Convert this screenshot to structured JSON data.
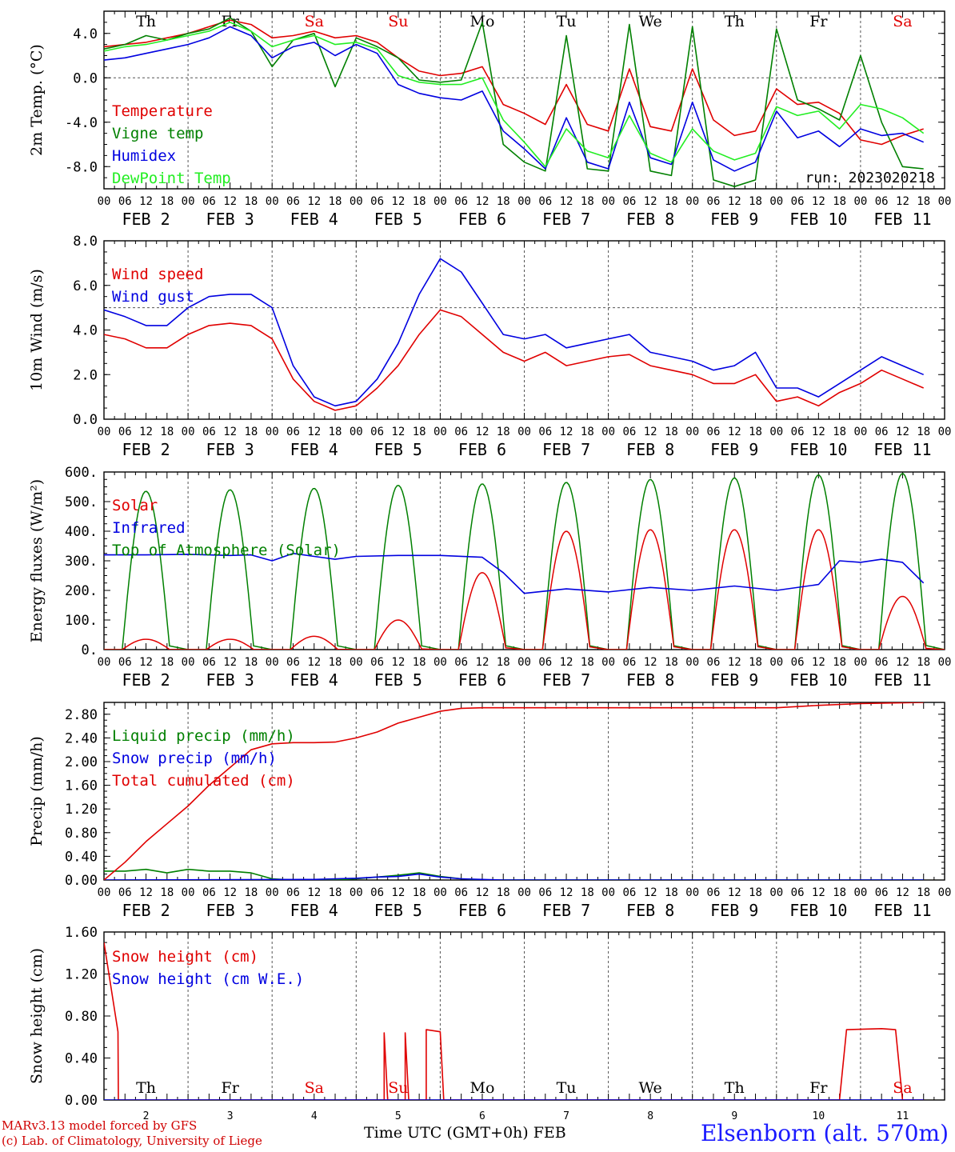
{
  "meta": {
    "credit_line1": "MARv3.13 model forced by GFS",
    "credit_line2": "(c) Lab. of Climatology, University of Liege",
    "xlabel": "Time UTC (GMT+0h) FEB",
    "station": "Elsenborn (alt. 570m)",
    "run": "run: 2023020218"
  },
  "time_axis": {
    "hour_ticks": [
      "00",
      "06",
      "12",
      "18"
    ],
    "date_labels": [
      "FEB  2",
      "FEB  3",
      "FEB  4",
      "FEB  5",
      "FEB  6",
      "FEB  7",
      "FEB  8",
      "FEB  9",
      "FEB 10",
      "FEB 11"
    ],
    "day_numbers": [
      "2",
      "3",
      "4",
      "5",
      "6",
      "7",
      "8",
      "9",
      "10",
      "11"
    ],
    "weekdays": [
      "Th",
      "Fr",
      "Sa",
      "Su",
      "Mo",
      "Tu",
      "We",
      "Th",
      "Fr",
      "Sa"
    ],
    "weekend_index": [
      2,
      3,
      9
    ],
    "colors": {
      "weekday": "#000000",
      "weekend": "#e00000"
    }
  },
  "chart_data": [
    {
      "type": "line",
      "ylabel": "2m Temp. (°C)",
      "ylim": [
        -10,
        6
      ],
      "yticks": [
        "4.0",
        "0.0",
        "-4.0",
        "-8.0"
      ],
      "ref_line": 0,
      "show_weekdays": "top",
      "show_run": true,
      "legend": [
        "Temperature",
        "Vigne temp",
        "Humidex",
        "DewPoint Temp"
      ],
      "series": [
        {
          "name": "Temperature",
          "color": "#e00000",
          "x": [
            0,
            6,
            12,
            18,
            24,
            30,
            36,
            42,
            48,
            54,
            60,
            66,
            72,
            78,
            84,
            90,
            96,
            102,
            108,
            114,
            120,
            126,
            132,
            138,
            144,
            150,
            156,
            162,
            168,
            174,
            180,
            186,
            192,
            198,
            204,
            210,
            216,
            222,
            228,
            234
          ],
          "y": [
            2.8,
            3.0,
            3.2,
            3.6,
            4.0,
            4.6,
            5.2,
            4.8,
            3.6,
            3.8,
            4.2,
            3.6,
            3.8,
            3.2,
            1.8,
            0.6,
            0.2,
            0.4,
            1.0,
            -2.4,
            -3.2,
            -4.2,
            -0.6,
            -4.2,
            -4.8,
            0.8,
            -4.4,
            -4.8,
            0.8,
            -3.8,
            -5.2,
            -4.8,
            -1.0,
            -2.4,
            -2.2,
            -3.2,
            -5.6,
            -6.0,
            -5.2,
            -4.6
          ]
        },
        {
          "name": "Vigne temp",
          "color": "#008000",
          "x": [
            0,
            6,
            12,
            18,
            24,
            30,
            36,
            42,
            48,
            54,
            60,
            66,
            72,
            78,
            84,
            90,
            96,
            102,
            108,
            114,
            120,
            126,
            132,
            138,
            144,
            150,
            156,
            162,
            168,
            174,
            180,
            186,
            192,
            198,
            204,
            210,
            216,
            222,
            228,
            234
          ],
          "y": [
            2.6,
            3.0,
            3.8,
            3.4,
            4.0,
            4.4,
            5.4,
            4.2,
            1.0,
            3.4,
            4.0,
            -0.8,
            3.6,
            2.8,
            1.8,
            -0.2,
            -0.4,
            -0.2,
            5.0,
            -6.0,
            -7.6,
            -8.4,
            3.8,
            -8.2,
            -8.4,
            4.8,
            -8.4,
            -8.8,
            4.6,
            -9.2,
            -9.8,
            -9.2,
            4.4,
            -2.0,
            -2.8,
            -3.8,
            2.0,
            -4.0,
            -8.0,
            -8.2
          ]
        },
        {
          "name": "Humidex",
          "color": "#0000e0",
          "x": [
            0,
            6,
            12,
            18,
            24,
            30,
            36,
            42,
            48,
            54,
            60,
            66,
            72,
            78,
            84,
            90,
            96,
            102,
            108,
            114,
            120,
            126,
            132,
            138,
            144,
            150,
            156,
            162,
            168,
            174,
            180,
            186,
            192,
            198,
            204,
            210,
            216,
            222,
            228,
            234
          ],
          "y": [
            1.6,
            1.8,
            2.2,
            2.6,
            3.0,
            3.6,
            4.6,
            3.8,
            1.8,
            2.8,
            3.2,
            2.0,
            3.0,
            2.2,
            -0.6,
            -1.4,
            -1.8,
            -2.0,
            -1.2,
            -4.8,
            -6.4,
            -8.2,
            -3.6,
            -7.6,
            -8.2,
            -2.2,
            -7.2,
            -7.8,
            -2.2,
            -7.4,
            -8.4,
            -7.6,
            -3.0,
            -5.4,
            -4.8,
            -6.2,
            -4.6,
            -5.2,
            -5.0,
            -5.8
          ]
        },
        {
          "name": "DewPoint Temp",
          "color": "#22ee22",
          "x": [
            0,
            6,
            12,
            18,
            24,
            30,
            36,
            42,
            48,
            54,
            60,
            66,
            72,
            78,
            84,
            90,
            96,
            102,
            108,
            114,
            120,
            126,
            132,
            138,
            144,
            150,
            156,
            162,
            168,
            174,
            180,
            186,
            192,
            198,
            204,
            210,
            216,
            222,
            228,
            234
          ],
          "y": [
            2.4,
            2.8,
            3.0,
            3.4,
            3.8,
            4.2,
            5.0,
            4.2,
            2.8,
            3.4,
            3.8,
            3.0,
            3.2,
            2.6,
            0.2,
            -0.4,
            -0.6,
            -0.6,
            0.0,
            -3.8,
            -5.8,
            -8.0,
            -4.6,
            -6.6,
            -7.2,
            -3.4,
            -6.8,
            -7.6,
            -4.6,
            -6.6,
            -7.4,
            -6.8,
            -2.6,
            -3.4,
            -3.0,
            -4.6,
            -2.4,
            -2.8,
            -3.6,
            -5.0
          ]
        }
      ]
    },
    {
      "type": "line",
      "ylabel": "10m Wind (m/s)",
      "ylim": [
        0,
        8
      ],
      "yticks": [
        "8.0",
        "6.0",
        "4.0",
        "2.0",
        "0.0"
      ],
      "ref_line": 5,
      "legend": [
        "Wind speed",
        "Wind gust"
      ],
      "series": [
        {
          "name": "Wind speed",
          "color": "#e00000",
          "x": [
            0,
            6,
            12,
            18,
            24,
            30,
            36,
            42,
            48,
            54,
            60,
            66,
            72,
            78,
            84,
            90,
            96,
            102,
            108,
            114,
            120,
            126,
            132,
            138,
            144,
            150,
            156,
            162,
            168,
            174,
            180,
            186,
            192,
            198,
            204,
            210,
            216,
            222,
            228,
            234
          ],
          "y": [
            3.8,
            3.6,
            3.2,
            3.2,
            3.8,
            4.2,
            4.3,
            4.2,
            3.6,
            1.8,
            0.8,
            0.4,
            0.6,
            1.4,
            2.4,
            3.8,
            4.9,
            4.6,
            3.8,
            3.0,
            2.6,
            3.0,
            2.4,
            2.6,
            2.8,
            2.9,
            2.4,
            2.2,
            2.0,
            1.6,
            1.6,
            2.0,
            0.8,
            1.0,
            0.6,
            1.2,
            1.6,
            2.2,
            1.8,
            1.4
          ]
        },
        {
          "name": "Wind gust",
          "color": "#0000e0",
          "x": [
            0,
            6,
            12,
            18,
            24,
            30,
            36,
            42,
            48,
            54,
            60,
            66,
            72,
            78,
            84,
            90,
            96,
            102,
            108,
            114,
            120,
            126,
            132,
            138,
            144,
            150,
            156,
            162,
            168,
            174,
            180,
            186,
            192,
            198,
            204,
            210,
            216,
            222,
            228,
            234
          ],
          "y": [
            4.9,
            4.6,
            4.2,
            4.2,
            5.0,
            5.5,
            5.6,
            5.6,
            5.0,
            2.4,
            1.0,
            0.6,
            0.8,
            1.8,
            3.4,
            5.6,
            7.2,
            6.6,
            5.2,
            3.8,
            3.6,
            3.8,
            3.2,
            3.4,
            3.6,
            3.8,
            3.0,
            2.8,
            2.6,
            2.2,
            2.4,
            3.0,
            1.4,
            1.4,
            1.0,
            1.6,
            2.2,
            2.8,
            2.4,
            2.0
          ]
        }
      ]
    },
    {
      "type": "line",
      "ylabel": "Energy fluxes (W/m²)",
      "ylim": [
        0,
        600
      ],
      "yticks": [
        "600.",
        "500.",
        "400.",
        "300.",
        "200.",
        "100.",
        "0."
      ],
      "legend": [
        "Solar",
        "Infrared",
        "Top of Atmosphere (Solar)"
      ],
      "bell_series": [
        {
          "name": "Top of Atmosphere (Solar)",
          "color": "#008000",
          "day_peaks": [
            535,
            540,
            545,
            555,
            560,
            565,
            575,
            580,
            590,
            595
          ]
        },
        {
          "name": "Solar",
          "color": "#e00000",
          "day_peaks": [
            35,
            35,
            45,
            100,
            260,
            400,
            405,
            405,
            405,
            180
          ]
        }
      ],
      "series": [
        {
          "name": "Infrared",
          "color": "#0000e0",
          "x": [
            0,
            12,
            24,
            36,
            42,
            48,
            54,
            60,
            66,
            72,
            84,
            96,
            108,
            114,
            120,
            132,
            144,
            156,
            168,
            180,
            192,
            204,
            210,
            216,
            222,
            228,
            234
          ],
          "y": [
            320,
            320,
            322,
            318,
            320,
            300,
            325,
            315,
            305,
            315,
            318,
            318,
            312,
            260,
            190,
            205,
            195,
            210,
            200,
            215,
            200,
            220,
            300,
            295,
            305,
            295,
            225
          ]
        }
      ]
    },
    {
      "type": "line",
      "ylabel": "Precip (mm/h)",
      "ylim": [
        0,
        3.0
      ],
      "yticks": [
        "2.80",
        "2.40",
        "2.00",
        "1.60",
        "1.20",
        "0.80",
        "0.40",
        "0.00"
      ],
      "legend": [
        "Liquid precip (mm/h)",
        "Snow precip (mm/h)",
        "Total cumulated (cm)"
      ],
      "series": [
        {
          "name": "Liquid precip (mm/h)",
          "color": "#008000",
          "x": [
            0,
            6,
            12,
            18,
            24,
            30,
            36,
            42,
            48,
            54,
            60,
            66,
            72,
            78,
            84,
            90,
            96,
            102,
            108,
            114,
            234
          ],
          "y": [
            0.15,
            0.15,
            0.18,
            0.12,
            0.18,
            0.15,
            0.15,
            0.12,
            0.02,
            0.0,
            0.0,
            0.0,
            0.02,
            0.05,
            0.08,
            0.12,
            0.06,
            0.02,
            0.0,
            0.0,
            0.0
          ]
        },
        {
          "name": "Snow precip (mm/h)",
          "color": "#0000e0",
          "x": [
            0,
            60,
            66,
            72,
            78,
            84,
            90,
            96,
            102,
            108,
            114,
            234
          ],
          "y": [
            0.0,
            0.01,
            0.02,
            0.03,
            0.05,
            0.06,
            0.1,
            0.05,
            0.02,
            0.01,
            0.0,
            0.0
          ]
        },
        {
          "name": "Total cumulated (cm)",
          "color": "#e00000",
          "x": [
            0,
            6,
            12,
            18,
            24,
            30,
            36,
            42,
            48,
            54,
            60,
            66,
            72,
            78,
            84,
            90,
            96,
            102,
            108,
            114,
            120,
            192,
            198,
            204,
            216,
            234
          ],
          "y": [
            0.0,
            0.3,
            0.65,
            0.95,
            1.25,
            1.6,
            1.9,
            2.2,
            2.3,
            2.32,
            2.32,
            2.33,
            2.4,
            2.5,
            2.65,
            2.75,
            2.85,
            2.9,
            2.91,
            2.91,
            2.91,
            2.91,
            2.93,
            2.95,
            2.98,
            3.0
          ]
        }
      ]
    },
    {
      "type": "line",
      "ylabel": "Snow height (cm)",
      "ylim": [
        0,
        1.6
      ],
      "yticks": [
        "1.60",
        "1.20",
        "0.80",
        "0.40",
        "0.00"
      ],
      "show_weekdays": "bottom",
      "legend": [
        "Snow height (cm)",
        "Snow height (cm W.E.)"
      ],
      "series": [
        {
          "name": "Snow height (cm)",
          "color": "#e00000",
          "x": [
            0,
            4,
            4.1,
            6,
            80,
            80,
            81,
            86,
            86,
            87,
            92,
            92,
            96,
            97,
            98,
            210,
            212,
            222,
            226,
            228,
            234
          ],
          "y": [
            1.5,
            0.65,
            0.0,
            0.0,
            0.0,
            0.64,
            0.0,
            0.0,
            0.64,
            0.0,
            0.0,
            0.67,
            0.65,
            0.0,
            0.0,
            0.0,
            0.67,
            0.68,
            0.67,
            0.0,
            0.0
          ]
        },
        {
          "name": "Snow height (cm W.E.)",
          "color": "#0000e0",
          "x": [
            0,
            234
          ],
          "y": [
            0.0,
            0.0
          ]
        }
      ]
    }
  ]
}
